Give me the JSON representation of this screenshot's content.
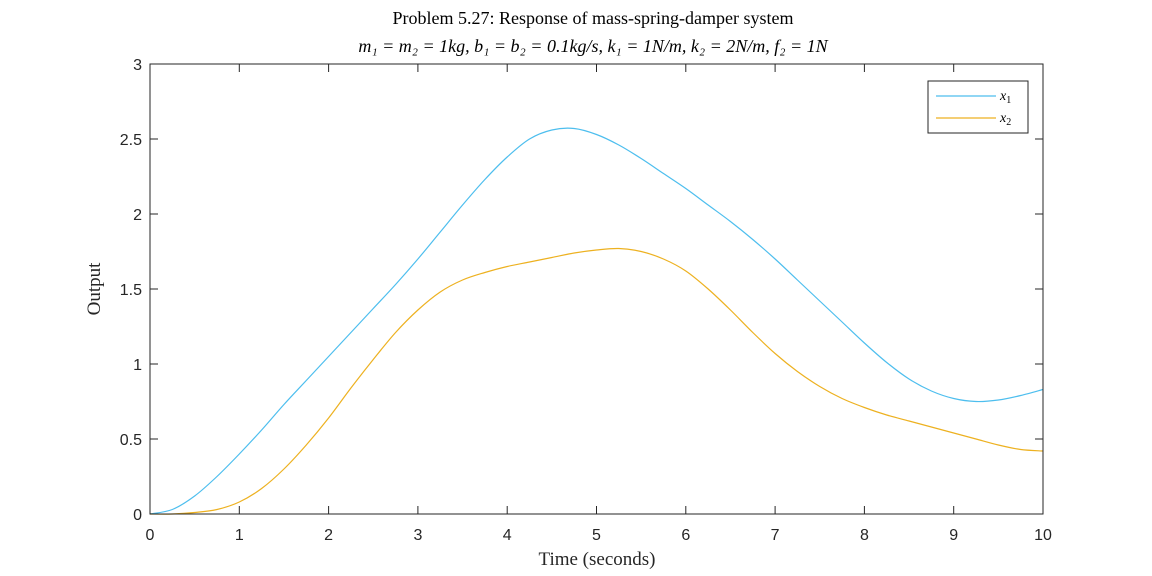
{
  "chart_data": {
    "type": "line",
    "title": "Problem 5.27: Response of mass-spring-damper system",
    "subtitle": "m₁ = m₂ = 1kg, b₁ = b₂ = 0.1kg/s, k₁ = 1N/m, k₂ = 2N/m, f₂ = 1N",
    "xlabel": "Time (seconds)",
    "ylabel": "Output",
    "xlim": [
      0,
      10
    ],
    "ylim": [
      0,
      3
    ],
    "xticks": [
      0,
      1,
      2,
      3,
      4,
      5,
      6,
      7,
      8,
      9,
      10
    ],
    "yticks": [
      0,
      0.5,
      1,
      1.5,
      2,
      2.5,
      3
    ],
    "ytick_labels": [
      "0",
      "0.5",
      "1",
      "1.5",
      "2",
      "2.5",
      "3"
    ],
    "grid": false,
    "legend_position": "top-right",
    "x": [
      0,
      0.25,
      0.5,
      0.75,
      1,
      1.25,
      1.5,
      1.75,
      2,
      2.25,
      2.5,
      2.75,
      3,
      3.25,
      3.5,
      3.75,
      4,
      4.25,
      4.5,
      4.75,
      5,
      5.25,
      5.5,
      5.75,
      6,
      6.25,
      6.5,
      6.75,
      7,
      7.25,
      7.5,
      7.75,
      8,
      8.25,
      8.5,
      8.75,
      9,
      9.25,
      9.5,
      9.75,
      10
    ],
    "series": [
      {
        "name": "x",
        "subscript": "1",
        "color": "#4DBEEE",
        "values": [
          0,
          0.03,
          0.12,
          0.25,
          0.4,
          0.56,
          0.73,
          0.89,
          1.05,
          1.21,
          1.37,
          1.53,
          1.7,
          1.88,
          2.06,
          2.23,
          2.38,
          2.5,
          2.56,
          2.57,
          2.53,
          2.46,
          2.37,
          2.27,
          2.17,
          2.06,
          1.95,
          1.83,
          1.7,
          1.56,
          1.42,
          1.28,
          1.14,
          1.01,
          0.9,
          0.82,
          0.77,
          0.75,
          0.76,
          0.79,
          0.83
        ]
      },
      {
        "name": "x",
        "subscript": "2",
        "color": "#EDB120",
        "values": [
          0,
          0,
          0.01,
          0.03,
          0.08,
          0.17,
          0.3,
          0.46,
          0.64,
          0.84,
          1.03,
          1.21,
          1.36,
          1.48,
          1.56,
          1.61,
          1.65,
          1.68,
          1.71,
          1.74,
          1.76,
          1.77,
          1.75,
          1.7,
          1.62,
          1.5,
          1.36,
          1.21,
          1.07,
          0.95,
          0.85,
          0.77,
          0.71,
          0.66,
          0.62,
          0.58,
          0.54,
          0.5,
          0.46,
          0.43,
          0.42
        ]
      }
    ]
  }
}
